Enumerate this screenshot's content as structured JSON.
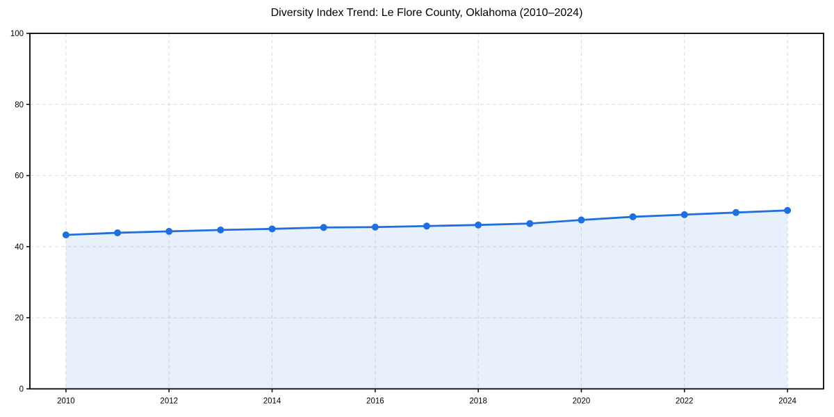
{
  "chart_data": {
    "type": "area",
    "title": "Diversity Index Trend: Le Flore County, Oklahoma (2010–2024)",
    "series_name": "Diversity Index",
    "x": [
      2010,
      2011,
      2012,
      2013,
      2014,
      2015,
      2016,
      2017,
      2018,
      2019,
      2020,
      2021,
      2022,
      2023,
      2024
    ],
    "values": [
      43.3,
      43.9,
      44.3,
      44.7,
      45.0,
      45.4,
      45.5,
      45.8,
      46.1,
      46.5,
      47.5,
      48.4,
      49.0,
      49.6,
      50.2
    ],
    "xlabel": "",
    "ylabel": "",
    "xlim": [
      2009.3,
      2024.7
    ],
    "ylim": [
      0,
      100
    ],
    "xticks": [
      2010,
      2012,
      2014,
      2016,
      2018,
      2020,
      2022,
      2024
    ],
    "yticks": [
      0,
      20,
      40,
      60,
      80,
      100
    ],
    "grid": true,
    "legend": "none",
    "colors": {
      "line": "#1f6fdf",
      "marker": "#1f6fdf",
      "fill": "#1f6fdf",
      "fill_opacity": "0.10",
      "grid": "#dcdcdc",
      "spine": "#000000",
      "background": "#ffffff",
      "text": "#000000"
    }
  }
}
